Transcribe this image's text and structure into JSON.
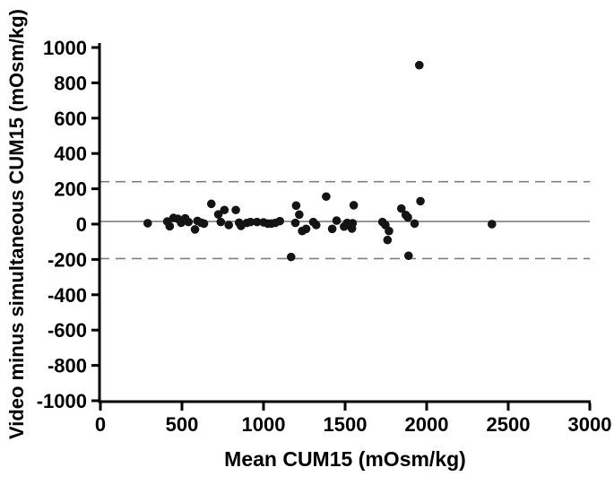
{
  "figure": {
    "background": "#ffffff",
    "axis_color": "#000000",
    "dot_color": "#141414",
    "ref_line_color": "#7f7f7f",
    "dot_radius": 4.8
  },
  "chart_data": {
    "type": "scatter",
    "title": "",
    "xlabel": "Mean CUM15 (mOsm/kg)",
    "ylabel": "Video minus simultaneous CUM15 (mOsm/kg)",
    "xlim": [
      0,
      3000
    ],
    "ylim": [
      -1000,
      1000
    ],
    "x_ticks": [
      0,
      500,
      1000,
      1500,
      2000,
      2500,
      3000
    ],
    "y_ticks": [
      1000,
      800,
      600,
      400,
      200,
      0,
      -200,
      -400,
      -600,
      -800,
      -1000
    ],
    "grid": false,
    "legend": null,
    "reference_lines": [
      {
        "name": "mean-bias-line",
        "value": 15,
        "style": "solid"
      },
      {
        "name": "upper-limit-line",
        "value": 240,
        "style": "dashed"
      },
      {
        "name": "lower-limit-line",
        "value": -195,
        "style": "dashed"
      }
    ],
    "points": [
      [
        290,
        5
      ],
      [
        410,
        15
      ],
      [
        425,
        -12
      ],
      [
        448,
        35
      ],
      [
        475,
        30
      ],
      [
        495,
        8
      ],
      [
        520,
        33
      ],
      [
        540,
        12
      ],
      [
        580,
        -30
      ],
      [
        595,
        18
      ],
      [
        618,
        8
      ],
      [
        635,
        3
      ],
      [
        680,
        115
      ],
      [
        723,
        55
      ],
      [
        738,
        12
      ],
      [
        760,
        80
      ],
      [
        787,
        -5
      ],
      [
        830,
        80
      ],
      [
        850,
        8
      ],
      [
        862,
        -10
      ],
      [
        898,
        7
      ],
      [
        920,
        12
      ],
      [
        960,
        12
      ],
      [
        1000,
        10
      ],
      [
        1026,
        3
      ],
      [
        1048,
        3
      ],
      [
        1072,
        7
      ],
      [
        1100,
        17
      ],
      [
        1169,
        -186
      ],
      [
        1195,
        7
      ],
      [
        1200,
        105
      ],
      [
        1219,
        54
      ],
      [
        1237,
        -39
      ],
      [
        1261,
        -27
      ],
      [
        1305,
        12
      ],
      [
        1323,
        -5
      ],
      [
        1384,
        156
      ],
      [
        1421,
        -27
      ],
      [
        1448,
        20
      ],
      [
        1494,
        -14
      ],
      [
        1513,
        7
      ],
      [
        1542,
        -25
      ],
      [
        1546,
        5
      ],
      [
        1553,
        107
      ],
      [
        1729,
        12
      ],
      [
        1747,
        -5
      ],
      [
        1760,
        -90
      ],
      [
        1769,
        -39
      ],
      [
        1845,
        88
      ],
      [
        1872,
        52
      ],
      [
        1885,
        38
      ],
      [
        1889,
        -179
      ],
      [
        1926,
        3
      ],
      [
        1955,
        900
      ],
      [
        1962,
        130
      ],
      [
        2400,
        0
      ]
    ]
  }
}
